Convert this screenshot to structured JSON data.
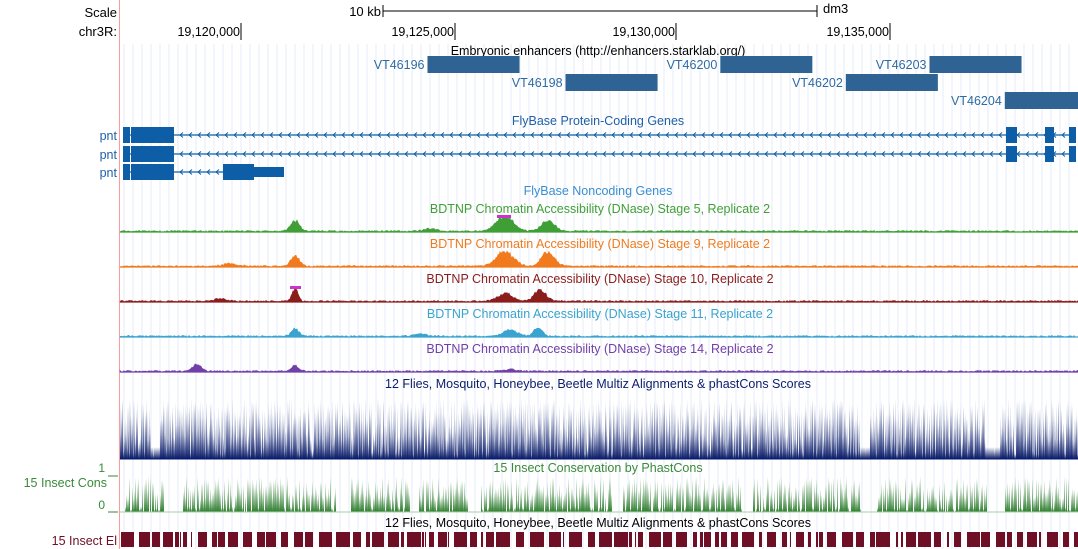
{
  "header": {
    "scale_label": "Scale",
    "chrom_label": "chr3R:",
    "scale_bar_label": "10 kb",
    "assembly": "dm3",
    "positions": [
      "19,120,000",
      "19,125,000",
      "19,130,000",
      "19,135,000"
    ]
  },
  "enhancer_track": {
    "title": "Embryonic enhancers (http://enhancers.starklab.org/)",
    "color": "#2e6394",
    "label_color": "#2e6aa3",
    "items": [
      {
        "label": "VT46196",
        "start": 19123850,
        "end": 19126050
      },
      {
        "label": "VT46198",
        "start": 19127150,
        "end": 19129350
      },
      {
        "label": "VT46200",
        "start": 19130850,
        "end": 19133050
      },
      {
        "label": "VT46202",
        "start": 19133850,
        "end": 19136050
      },
      {
        "label": "VT46203",
        "start": 19135850,
        "end": 19138050
      },
      {
        "label": "VT46204",
        "start": 19137650,
        "end": 19139400
      }
    ]
  },
  "gene_track": {
    "title": "FlyBase Protein-Coding Genes",
    "color": "#0d5ea6",
    "label_color": "#1f5fa8",
    "rows": [
      {
        "label": "pnt",
        "type": "long"
      },
      {
        "label": "pnt",
        "type": "long"
      },
      {
        "label": "pnt",
        "type": "short"
      }
    ]
  },
  "noncoding_track": {
    "title": "FlyBase Noncoding Genes",
    "color": "#3a8dd0"
  },
  "dnase_tracks": [
    {
      "title": "BDTNP Chromatin Accessibility (DNase) Stage 5, Replicate 2",
      "color": "#3f9f36"
    },
    {
      "title": "BDTNP Chromatin Accessibility (DNase) Stage 9, Replicate 2",
      "color": "#f07a1d"
    },
    {
      "title": "BDTNP Chromatin Accessibility (DNase) Stage 10, Replicate 2",
      "color": "#8b1c1c"
    },
    {
      "title": "BDTNP Chromatin Accessibility (DNase) Stage 11, Replicate 2",
      "color": "#3aa3cf"
    },
    {
      "title": "BDTNP Chromatin Accessibility (DNase) Stage 14, Replicate 2",
      "color": "#7040a8"
    }
  ],
  "peak_marker_color": "#cc33cc",
  "multiz_track": {
    "title": "12 Flies, Mosquito, Honeybee, Beetle Multiz Alignments & phastCons Scores",
    "color": "#0b1d6b"
  },
  "phastcons_track": {
    "side_label": "15 Insect Cons",
    "title": "15 Insect Conservation by PhastCons",
    "axis_max": "1",
    "axis_min": "0",
    "color": "#2f7f2f",
    "label_color": "#3a8a3a"
  },
  "elements_track": {
    "side_label": "15 Insect El",
    "title": "12 Flies, Mosquito, Honeybee, Beetle Multiz Alignments & phastCons Scores",
    "color": "#6e0f26"
  }
}
